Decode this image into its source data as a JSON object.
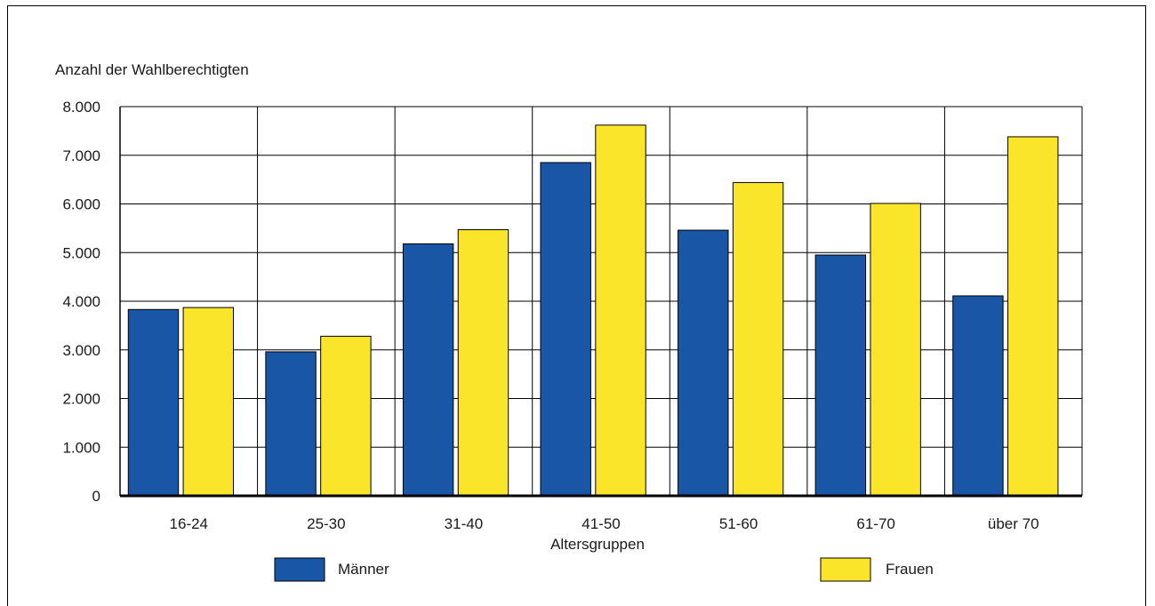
{
  "chart_data": {
    "type": "bar",
    "title": "",
    "ylabel": "Anzahl der Wahlberechtigten",
    "xlabel": "Altersgruppen",
    "categories": [
      "16-24",
      "25-30",
      "31-40",
      "41-50",
      "51-60",
      "61-70",
      "über 70"
    ],
    "ylim": [
      0,
      8000
    ],
    "yticks": [
      0,
      1000,
      2000,
      3000,
      4000,
      5000,
      6000,
      7000,
      8000
    ],
    "ytick_labels": [
      "0",
      "1.000",
      "2.000",
      "3.000",
      "4.000",
      "5.000",
      "6.000",
      "7.000",
      "8.000"
    ],
    "grid": true,
    "legend_position": "bottom",
    "series": [
      {
        "name": "Männer",
        "color": "#1a56a6",
        "values": [
          3830,
          2960,
          5180,
          6850,
          5460,
          4950,
          4110
        ]
      },
      {
        "name": "Frauen",
        "color": "#fbe52a",
        "values": [
          3870,
          3280,
          5470,
          7620,
          6440,
          6010,
          7380
        ]
      }
    ]
  }
}
